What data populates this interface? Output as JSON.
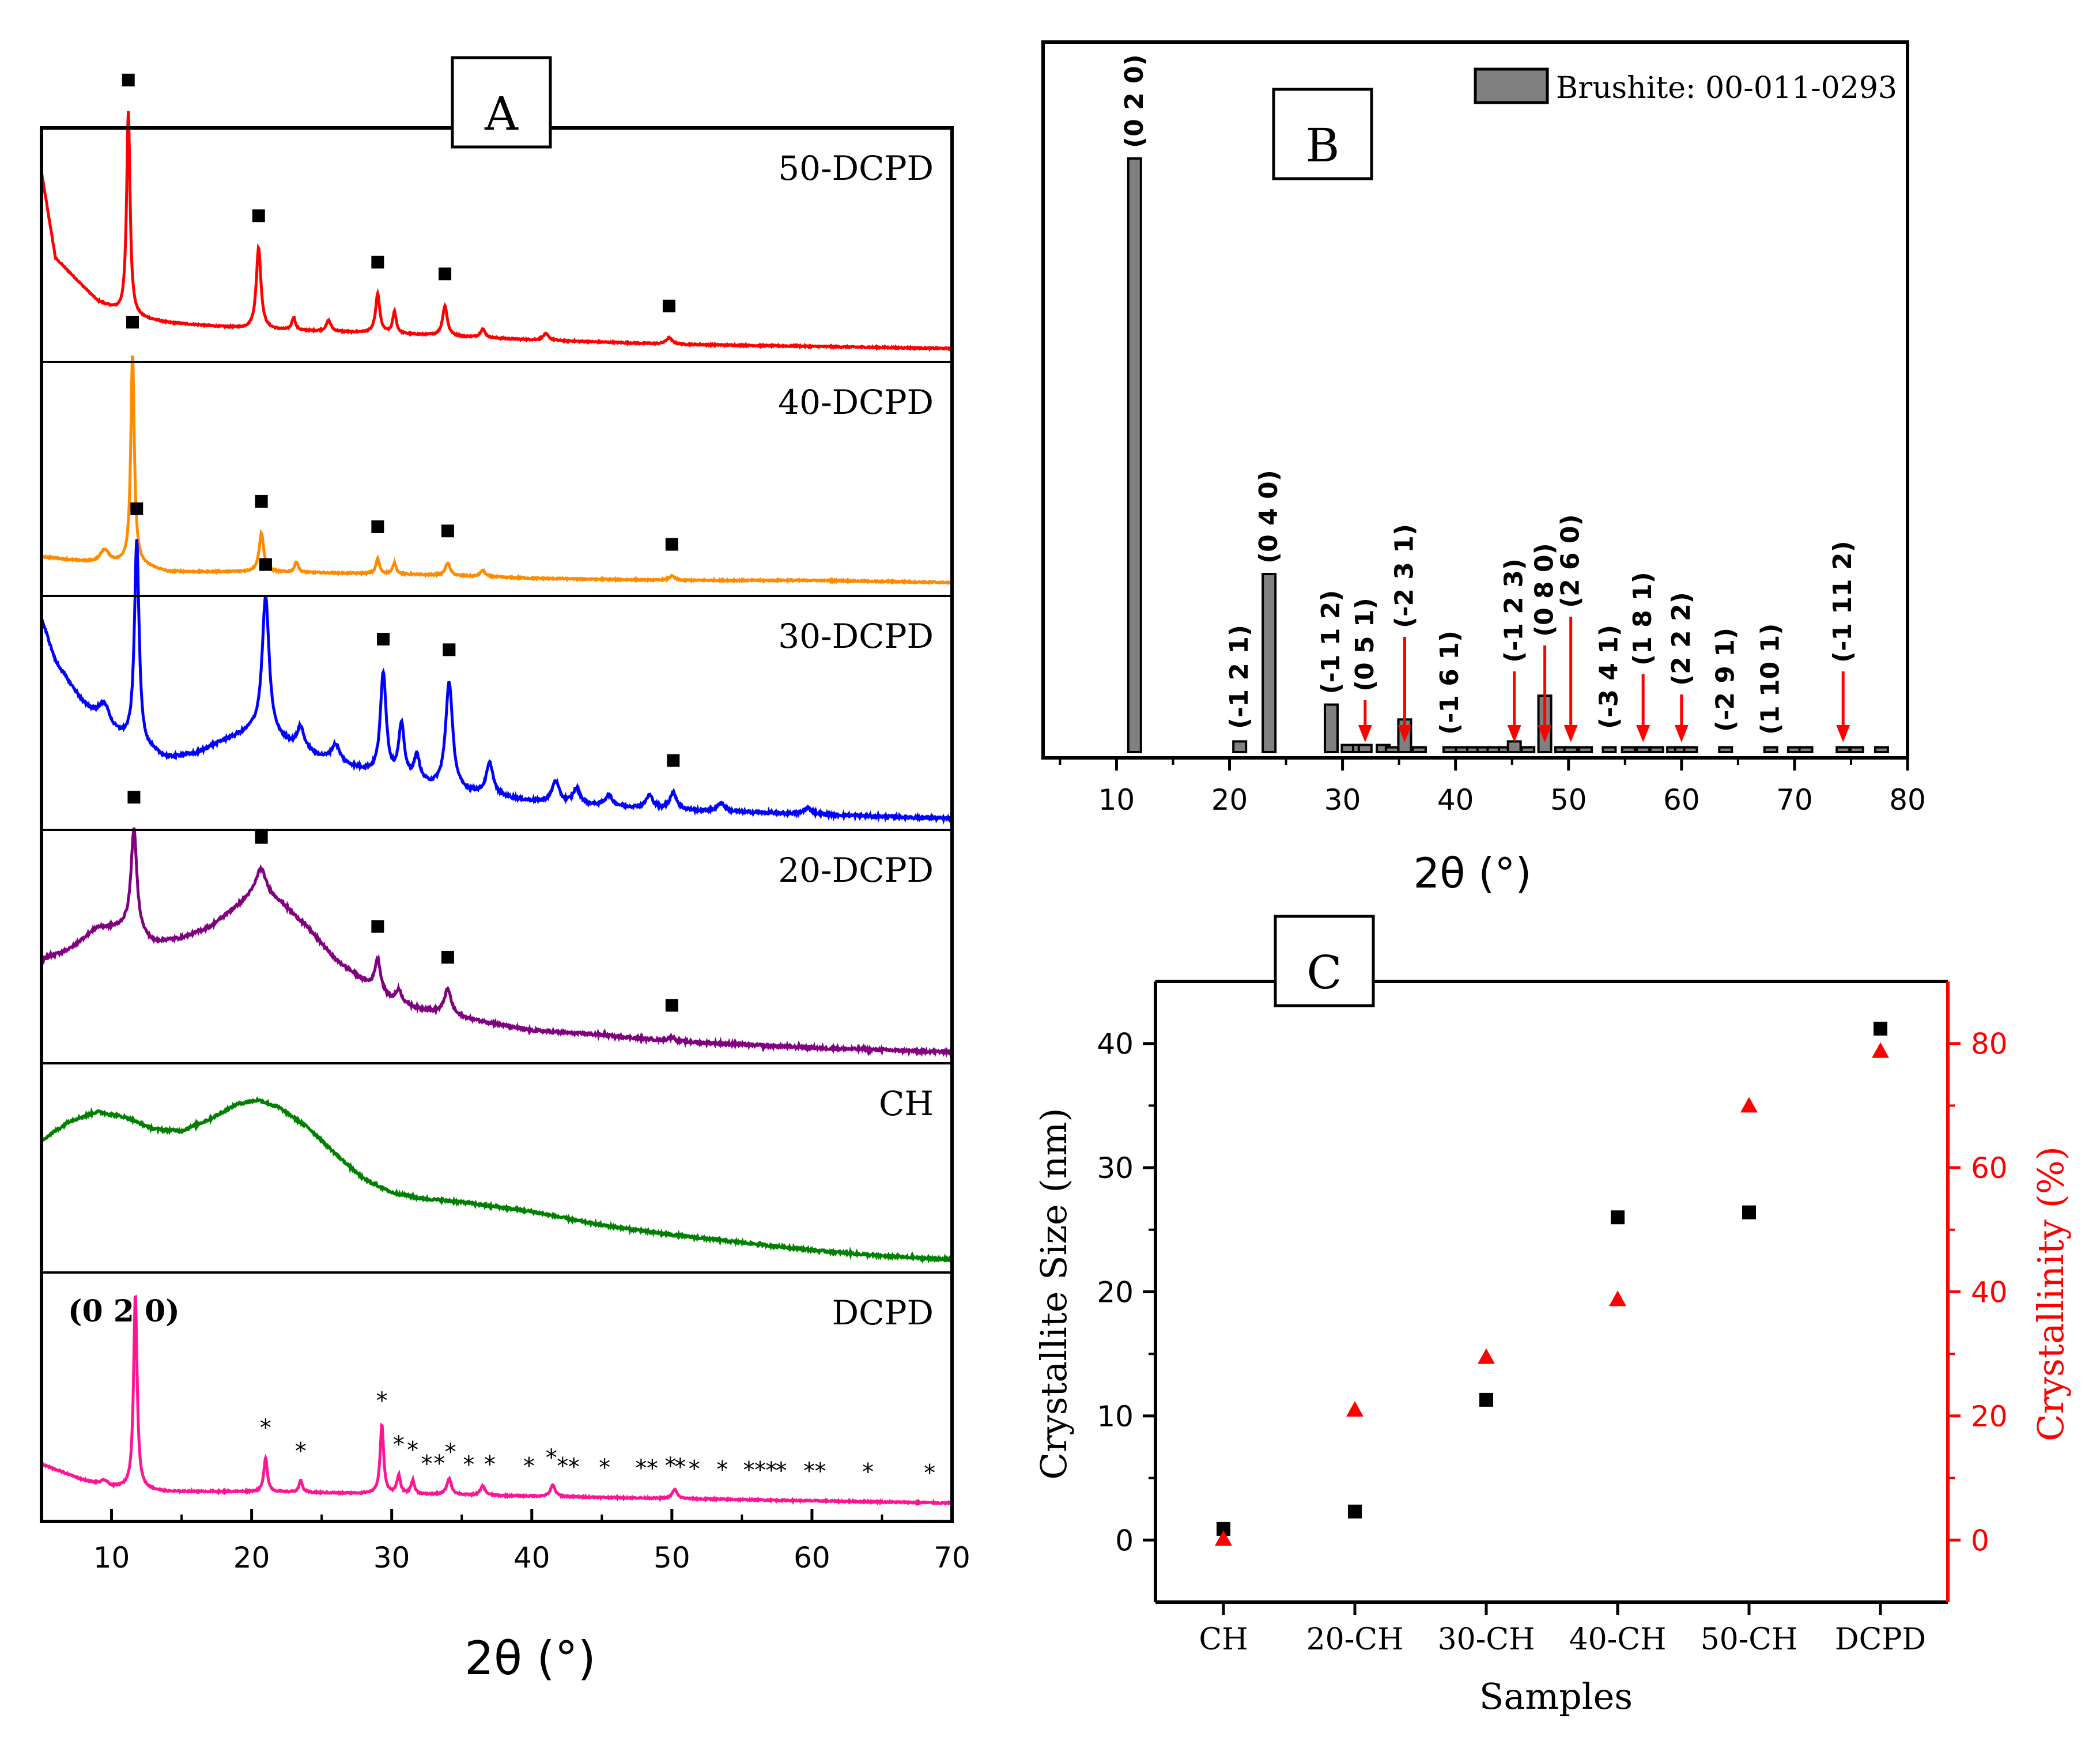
{
  "chart_data": [
    {
      "panel": "A",
      "type": "line",
      "title": "A",
      "xlabel": "2θ (°)",
      "ylabel": "",
      "xlim": [
        5,
        70
      ],
      "x_ticks": [
        10,
        20,
        30,
        40,
        50,
        60,
        70
      ],
      "marker_symbol": "■",
      "star_symbol": "*",
      "series": [
        {
          "name": "50-DCPD",
          "color": "#ff0000",
          "baseline": [
            [
              5,
              0.85
            ],
            [
              6,
              0.45
            ],
            [
              9,
              0.25
            ],
            [
              11.2,
              0.18
            ],
            [
              14,
              0.15
            ],
            [
              20,
              0.12
            ],
            [
              30,
              0.1
            ],
            [
              40,
              0.07
            ],
            [
              50,
              0.05
            ],
            [
              60,
              0.04
            ],
            [
              70,
              0.03
            ]
          ],
          "peaks": [
            [
              11.2,
              0.95,
              0.15
            ],
            [
              20.5,
              0.38,
              0.2
            ],
            [
              23.0,
              0.06,
              0.15
            ],
            [
              25.5,
              0.05,
              0.2
            ],
            [
              29.0,
              0.18,
              0.18
            ],
            [
              30.2,
              0.1,
              0.15
            ],
            [
              33.8,
              0.14,
              0.2
            ],
            [
              36.5,
              0.04,
              0.2
            ],
            [
              41.0,
              0.03,
              0.25
            ],
            [
              49.8,
              0.03,
              0.25
            ]
          ],
          "markers": [
            11.2,
            20.5,
            29.0,
            33.8,
            49.8
          ]
        },
        {
          "name": "40-DCPD",
          "color": "#ff8c00",
          "baseline": [
            [
              5,
              0.15
            ],
            [
              9,
              0.12
            ],
            [
              11.5,
              0.12
            ],
            [
              14,
              0.08
            ],
            [
              20,
              0.08
            ],
            [
              30,
              0.07
            ],
            [
              40,
              0.05
            ],
            [
              50,
              0.04
            ],
            [
              60,
              0.04
            ],
            [
              70,
              0.03
            ]
          ],
          "peaks": [
            [
              9.5,
              0.06,
              0.4
            ],
            [
              11.5,
              0.97,
              0.15
            ],
            [
              20.7,
              0.18,
              0.2
            ],
            [
              23.2,
              0.05,
              0.15
            ],
            [
              29.0,
              0.07,
              0.15
            ],
            [
              30.2,
              0.05,
              0.15
            ],
            [
              34.0,
              0.06,
              0.2
            ],
            [
              36.5,
              0.03,
              0.2
            ],
            [
              50.0,
              0.02,
              0.25
            ]
          ],
          "markers": [
            11.5,
            20.7,
            29.0,
            34.0,
            50.0
          ]
        },
        {
          "name": "30-DCPD",
          "color": "#0000ff",
          "baseline": [
            [
              5,
              0.95
            ],
            [
              6,
              0.75
            ],
            [
              8,
              0.55
            ],
            [
              10,
              0.42
            ],
            [
              12,
              0.35
            ],
            [
              14,
              0.3
            ],
            [
              16,
              0.32
            ],
            [
              18,
              0.38
            ],
            [
              20,
              0.42
            ],
            [
              22,
              0.38
            ],
            [
              25,
              0.3
            ],
            [
              30,
              0.2
            ],
            [
              35,
              0.14
            ],
            [
              40,
              0.1
            ],
            [
              45,
              0.08
            ],
            [
              50,
              0.06
            ],
            [
              60,
              0.04
            ],
            [
              70,
              0.02
            ]
          ],
          "peaks": [
            [
              9.5,
              0.1,
              0.5
            ],
            [
              11.8,
              0.95,
              0.2
            ],
            [
              21.0,
              0.65,
              0.3
            ],
            [
              23.5,
              0.1,
              0.3
            ],
            [
              26.0,
              0.08,
              0.35
            ],
            [
              29.4,
              0.48,
              0.25
            ],
            [
              30.7,
              0.25,
              0.25
            ],
            [
              31.8,
              0.12,
              0.25
            ],
            [
              34.1,
              0.5,
              0.3
            ],
            [
              37.0,
              0.15,
              0.3
            ],
            [
              41.7,
              0.1,
              0.3
            ],
            [
              43.2,
              0.07,
              0.3
            ],
            [
              45.5,
              0.05,
              0.3
            ],
            [
              48.4,
              0.06,
              0.3
            ],
            [
              50.1,
              0.08,
              0.3
            ],
            [
              53.5,
              0.04,
              0.3
            ],
            [
              59.7,
              0.03,
              0.3
            ]
          ],
          "markers": [
            11.8,
            21.0,
            29.4,
            34.1,
            50.1
          ]
        },
        {
          "name": "20-DCPD",
          "color": "#800080",
          "baseline": [
            [
              5,
              0.45
            ],
            [
              7,
              0.5
            ],
            [
              9,
              0.6
            ],
            [
              11,
              0.6
            ],
            [
              13,
              0.53
            ],
            [
              15,
              0.55
            ],
            [
              17,
              0.6
            ],
            [
              19,
              0.7
            ],
            [
              20.5,
              0.78
            ],
            [
              22,
              0.72
            ],
            [
              24,
              0.6
            ],
            [
              26,
              0.45
            ],
            [
              28,
              0.35
            ],
            [
              30,
              0.26
            ],
            [
              32,
              0.22
            ],
            [
              35,
              0.18
            ],
            [
              40,
              0.12
            ],
            [
              45,
              0.1
            ],
            [
              50,
              0.07
            ],
            [
              60,
              0.04
            ],
            [
              70,
              0.02
            ]
          ],
          "peaks": [
            [
              11.6,
              0.48,
              0.25
            ],
            [
              20.7,
              0.1,
              0.4
            ],
            [
              29.0,
              0.15,
              0.25
            ],
            [
              30.5,
              0.06,
              0.25
            ],
            [
              34.0,
              0.12,
              0.3
            ],
            [
              50.0,
              0.02,
              0.3
            ]
          ],
          "markers": [
            11.6,
            20.7,
            29.0,
            34.0,
            50.0
          ]
        },
        {
          "name": "CH",
          "color": "#008000",
          "baseline": [
            [
              5,
              0.65
            ],
            [
              7,
              0.75
            ],
            [
              9,
              0.8
            ],
            [
              11,
              0.77
            ],
            [
              13,
              0.71
            ],
            [
              15,
              0.7
            ],
            [
              17,
              0.76
            ],
            [
              19,
              0.84
            ],
            [
              20.5,
              0.86
            ],
            [
              22,
              0.82
            ],
            [
              24,
              0.72
            ],
            [
              26,
              0.58
            ],
            [
              28,
              0.45
            ],
            [
              30,
              0.38
            ],
            [
              32,
              0.35
            ],
            [
              35,
              0.33
            ],
            [
              40,
              0.28
            ],
            [
              45,
              0.21
            ],
            [
              50,
              0.16
            ],
            [
              55,
              0.12
            ],
            [
              60,
              0.08
            ],
            [
              65,
              0.05
            ],
            [
              70,
              0.03
            ]
          ],
          "peaks": [],
          "markers": []
        },
        {
          "name": "DCPD",
          "color": "#ff1493",
          "baseline": [
            [
              5,
              0.22
            ],
            [
              8,
              0.15
            ],
            [
              10,
              0.12
            ],
            [
              14,
              0.1
            ],
            [
              20,
              0.1
            ],
            [
              30,
              0.09
            ],
            [
              40,
              0.08
            ],
            [
              50,
              0.07
            ],
            [
              60,
              0.06
            ],
            [
              70,
              0.05
            ]
          ],
          "peaks": [
            [
              9.5,
              0.02,
              0.3
            ],
            [
              11.7,
              0.85,
              0.15
            ],
            [
              21.0,
              0.15,
              0.15
            ],
            [
              23.5,
              0.05,
              0.15
            ],
            [
              29.3,
              0.3,
              0.15
            ],
            [
              30.5,
              0.08,
              0.15
            ],
            [
              31.5,
              0.06,
              0.15
            ],
            [
              34.1,
              0.07,
              0.2
            ],
            [
              36.5,
              0.04,
              0.2
            ],
            [
              41.5,
              0.05,
              0.2
            ],
            [
              50.2,
              0.04,
              0.2
            ]
          ],
          "stars": [
            21.0,
            23.5,
            29.3,
            30.5,
            31.5,
            32.5,
            33.4,
            34.2,
            35.5,
            37.0,
            39.8,
            41.4,
            42.2,
            43.0,
            45.2,
            47.8,
            48.6,
            49.9,
            50.6,
            51.6,
            53.6,
            55.5,
            56.3,
            57.1,
            57.8,
            59.8,
            60.6,
            64.0,
            68.4
          ],
          "star_high": [
            29.3
          ],
          "annotation": "(0 2 0)"
        }
      ]
    },
    {
      "panel": "B",
      "type": "bar",
      "title": "B",
      "legend": "Brushite: 00-011-0293",
      "legend_color": "#808080",
      "xlabel": "2θ (°)",
      "xlim": [
        3.5,
        80
      ],
      "ylim": [
        0,
        100
      ],
      "x_ticks": [
        10,
        20,
        30,
        40,
        50,
        60,
        70,
        80
      ],
      "bars": [
        {
          "x": 11.6,
          "value": 100,
          "label": "(0 2 0)"
        },
        {
          "x": 20.9,
          "value": 1.8,
          "label": "(-1 2 1)"
        },
        {
          "x": 23.5,
          "value": 30,
          "label": "(0 4 0)"
        },
        {
          "x": 29.0,
          "value": 8,
          "label": "(-1 1 2)"
        },
        {
          "x": 30.5,
          "value": 1.2,
          "label": ""
        },
        {
          "x": 31.5,
          "value": 1.2,
          "label": ""
        },
        {
          "x": 32.0,
          "value": 1.2,
          "label": "(0 5 1)",
          "arrow": true
        },
        {
          "x": 33.6,
          "value": 1.2,
          "label": ""
        },
        {
          "x": 34.4,
          "value": 0.8,
          "label": ""
        },
        {
          "x": 35.5,
          "value": 5.5,
          "label": "(-2 3 1)",
          "arrow": true
        },
        {
          "x": 36.8,
          "value": 0.8,
          "label": ""
        },
        {
          "x": 39.5,
          "value": 0.8,
          "label": "(-1 6 1)"
        },
        {
          "x": 40.6,
          "value": 0.8,
          "label": ""
        },
        {
          "x": 41.6,
          "value": 0.8,
          "label": ""
        },
        {
          "x": 42.5,
          "value": 0.8,
          "label": ""
        },
        {
          "x": 43.4,
          "value": 0.8,
          "label": ""
        },
        {
          "x": 44.4,
          "value": 0.8,
          "label": ""
        },
        {
          "x": 45.2,
          "value": 1.8,
          "label": "(-1 2 3)",
          "arrow": true
        },
        {
          "x": 46.4,
          "value": 0.8,
          "label": ""
        },
        {
          "x": 47.9,
          "value": 9.5,
          "label": "(0 8 0)",
          "arrow": true
        },
        {
          "x": 49.4,
          "value": 0.8,
          "label": ""
        },
        {
          "x": 50.2,
          "value": 0.8,
          "label": "(2 6 0)",
          "arrow": true
        },
        {
          "x": 51.5,
          "value": 0.8,
          "label": ""
        },
        {
          "x": 53.6,
          "value": 0.8,
          "label": "(-3 4 1)"
        },
        {
          "x": 55.3,
          "value": 0.8,
          "label": ""
        },
        {
          "x": 56.6,
          "value": 0.8,
          "label": "(1 8 1)",
          "arrow": true
        },
        {
          "x": 57.8,
          "value": 0.8,
          "label": ""
        },
        {
          "x": 59.3,
          "value": 0.8,
          "label": ""
        },
        {
          "x": 60.0,
          "value": 0.8,
          "label": "(2 2 2)",
          "arrow": true
        },
        {
          "x": 60.8,
          "value": 0.8,
          "label": ""
        },
        {
          "x": 63.9,
          "value": 0.8,
          "label": "(-2 9 1)"
        },
        {
          "x": 67.9,
          "value": 0.8,
          "label": "(1 10 1)"
        },
        {
          "x": 70.0,
          "value": 0.8,
          "label": ""
        },
        {
          "x": 71.0,
          "value": 0.8,
          "label": ""
        },
        {
          "x": 74.3,
          "value": 0.8,
          "label": "(-1 11 2)",
          "arrow": true
        },
        {
          "x": 75.5,
          "value": 0.8,
          "label": ""
        },
        {
          "x": 77.7,
          "value": 0.8,
          "label": ""
        }
      ]
    },
    {
      "panel": "C",
      "type": "scatter",
      "title": "C",
      "categories": [
        "CH",
        "20-CH",
        "30-CH",
        "40-CH",
        "50-CH",
        "DCPD"
      ],
      "xlabel": "Samples",
      "series": [
        {
          "name": "Crystallite Size (nm)",
          "axis": "left",
          "color": "#000000",
          "marker": "square",
          "values": [
            0.9,
            2.3,
            11.3,
            26.0,
            26.4,
            41.2
          ]
        },
        {
          "name": "Crystallinity (%)",
          "axis": "right",
          "color": "#ff0000",
          "marker": "triangle",
          "values": [
            0.2,
            21.0,
            29.5,
            38.8,
            70.0,
            78.8
          ]
        }
      ],
      "ylabel_left": "Crystallite Size (nm)",
      "ylabel_right": "Crystallinity (%)",
      "ylim_left": [
        -5,
        45
      ],
      "ylim_right": [
        -10,
        90
      ],
      "yticks_left": [
        0,
        10,
        20,
        30,
        40
      ],
      "yticks_right": [
        0,
        20,
        40,
        60,
        80
      ]
    }
  ]
}
